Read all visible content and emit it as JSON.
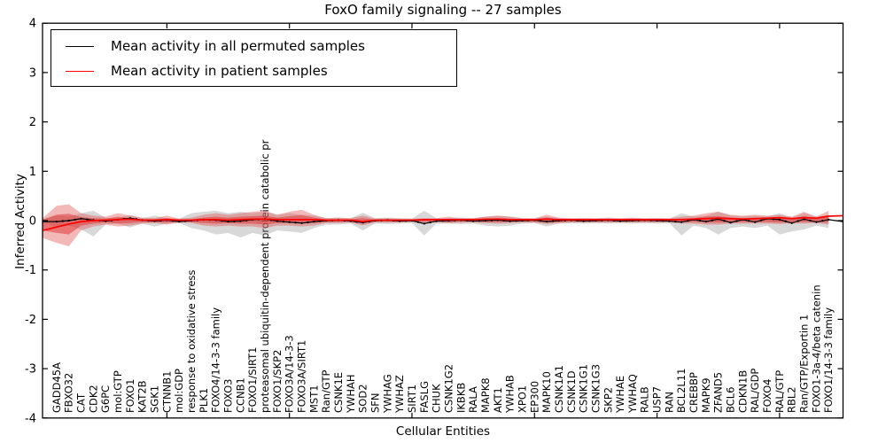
{
  "title": "FoxO family signaling -- 27 samples",
  "axes": {
    "xlabel": "Cellular Entities",
    "ylabel": "Inferred Activity",
    "ylim": [
      -4,
      4
    ],
    "yticks": [
      -4,
      -3,
      -2,
      -1,
      0,
      1,
      2,
      3,
      4
    ],
    "x_major_tick_positions": [
      10,
      20,
      30,
      40,
      50,
      60
    ]
  },
  "legend": {
    "position": "upper left",
    "items": [
      {
        "label": "Mean activity in all permuted samples",
        "color": "#000000"
      },
      {
        "label": "Mean activity in patient samples",
        "color": "#ff0000"
      }
    ]
  },
  "chart_data": {
    "type": "line",
    "title": "FoxO family signaling -- 27 samples",
    "xlabel": "Cellular Entities",
    "ylabel": "Inferred Activity",
    "ylim": [
      -4,
      4
    ],
    "grid": false,
    "categories": [
      "GADD45A",
      "FBXO32",
      "CAT",
      "CDK2",
      "G6PC",
      "mol:GTP",
      "FOXO1",
      "KAT2B",
      "SGK1",
      "CTNNB1",
      "mol:GDP",
      "response to oxidative stress",
      "PLK1",
      "FOXO4/14-3-3 family",
      "FOXO3",
      "CCNB1",
      "FOXO1/SIRT1",
      "proteasomal ubiquitin-dependent protein catabolic pr",
      "FOXO1/SKP2",
      "FOXO3A/14-3-3",
      "FOXO3A/SIRT1",
      "MST1",
      "Ran/GTP",
      "CSNK1E",
      "YWHAH",
      "SOD2",
      "SFN",
      "YWHAG",
      "YWHAZ",
      "SIRT1",
      "FASLG",
      "CHUK",
      "CSNK1G2",
      "IKBKB",
      "RALA",
      "MAPK8",
      "AKT1",
      "YWHAB",
      "XPO1",
      "EP300",
      "MAPK10",
      "CSNK1A1",
      "CSNK1D",
      "CSNK1G1",
      "CSNK1G3",
      "SKP2",
      "YWHAE",
      "YWHAQ",
      "RALB",
      "USP7",
      "RAN",
      "BCL2L11",
      "CREBBP",
      "MAPK9",
      "ZFAND5",
      "BCL6",
      "CDKN1B",
      "RAL/GDP",
      "FOXO4",
      "RAL/GTP",
      "RBL2",
      "Ran/GTP/Exportin 1",
      "FOXO1-3a-4/beta catenin",
      "FOXO1/14-3-3 family"
    ],
    "series": [
      {
        "name": "Mean activity in all permuted samples",
        "color": "#000000",
        "line_width": 1.2,
        "markers": true,
        "edge_left": -0.02,
        "edge_right": -0.02,
        "values": [
          -0.02,
          0,
          0.04,
          0.01,
          -0.01,
          0.02,
          0.05,
          0.01,
          -0.01,
          0.01,
          -0.02,
          0,
          0.02,
          0.01,
          -0.02,
          -0.01,
          0.02,
          0.03,
          -0.01,
          -0.03,
          -0.05,
          -0.02,
          0,
          0.01,
          -0.01,
          -0.04,
          0,
          0.01,
          -0.01,
          0,
          -0.06,
          -0.01,
          0,
          0.01,
          -0.01,
          0,
          0.01,
          -0.01,
          0,
          0.01,
          -0.02,
          0,
          0.01,
          -0.01,
          0,
          0.01,
          -0.01,
          0,
          0.01,
          0,
          -0.01,
          -0.03,
          0.02,
          -0.02,
          0.03,
          -0.04,
          0.02,
          -0.03,
          0.04,
          0.02,
          -0.05,
          0.03,
          -0.03,
          0.02
        ]
      },
      {
        "name": "Mean activity in patient samples",
        "color": "#ff0000",
        "line_width": 1.7,
        "markers": false,
        "edge_left": -0.2,
        "edge_right": 0.1,
        "values": [
          -0.13,
          -0.07,
          -0.02,
          0,
          0.01,
          0.02,
          0.03,
          0.01,
          0.01,
          0.02,
          0.01,
          0.01,
          0.02,
          0.02,
          0.01,
          0.02,
          0.03,
          0.03,
          0.02,
          0.02,
          0.02,
          0.02,
          0.01,
          0.01,
          0.01,
          -0.02,
          0.01,
          0.01,
          0.01,
          0.01,
          0.02,
          0.02,
          0.02,
          0.02,
          0.02,
          0.03,
          0.03,
          0.02,
          0.02,
          0.02,
          0.03,
          0.02,
          0.02,
          0.02,
          0.02,
          0.02,
          0.02,
          0.02,
          0.02,
          0.02,
          0.02,
          0.02,
          0.03,
          0.04,
          0.05,
          0.04,
          0.03,
          0.04,
          0.05,
          0.06,
          0.04,
          0.06,
          0.05,
          0.09
        ]
      }
    ],
    "bands": [
      {
        "name": "permuted-sample-range",
        "color": "#999999",
        "opacity": 0.38,
        "edge_left": {
          "upper": 0.03,
          "lower": -0.05
        },
        "upper": [
          0.1,
          0.08,
          0.15,
          0.2,
          0.06,
          0.05,
          0.12,
          0.05,
          0.1,
          0.05,
          0.04,
          0.15,
          0.18,
          0.2,
          0.15,
          0.18,
          0.15,
          0.18,
          0.12,
          0.15,
          0.12,
          0.1,
          0.05,
          0.06,
          0.05,
          0.16,
          0.05,
          0.06,
          0.05,
          0.04,
          0.2,
          0.05,
          0.05,
          0.06,
          0.05,
          0.08,
          0.1,
          0.08,
          0.05,
          0.04,
          0.08,
          0.05,
          0.04,
          0.05,
          0.04,
          0.05,
          0.04,
          0.05,
          0.04,
          0.05,
          0.04,
          0.15,
          0.08,
          0.1,
          0.18,
          0.1,
          0.08,
          0.1,
          0.08,
          0.15,
          0.06,
          0.15,
          0.08,
          0.12
        ],
        "lower": [
          -0.12,
          -0.1,
          -0.18,
          -0.32,
          -0.08,
          -0.06,
          -0.14,
          -0.06,
          -0.12,
          -0.06,
          -0.05,
          -0.15,
          -0.2,
          -0.28,
          -0.25,
          -0.34,
          -0.25,
          -0.3,
          -0.2,
          -0.22,
          -0.25,
          -0.15,
          -0.08,
          -0.08,
          -0.06,
          -0.2,
          -0.06,
          -0.07,
          -0.06,
          -0.05,
          -0.3,
          -0.06,
          -0.06,
          -0.07,
          -0.06,
          -0.1,
          -0.12,
          -0.1,
          -0.06,
          -0.05,
          -0.12,
          -0.06,
          -0.05,
          -0.06,
          -0.05,
          -0.06,
          -0.05,
          -0.06,
          -0.05,
          -0.06,
          -0.05,
          -0.3,
          -0.1,
          -0.15,
          -0.28,
          -0.15,
          -0.12,
          -0.15,
          -0.1,
          -0.28,
          -0.22,
          -0.18,
          -0.1,
          -0.15
        ]
      },
      {
        "name": "patient-sample-range-outer",
        "color": "#e05050",
        "opacity": 0.4,
        "edge_left": {
          "upper": 0.05,
          "lower": -0.35
        },
        "upper": [
          0.3,
          0.33,
          0.15,
          0.1,
          0.08,
          0.15,
          0.1,
          0.06,
          0.05,
          0.1,
          0.04,
          0.06,
          0.12,
          0.15,
          0.12,
          0.15,
          0.18,
          0.2,
          0.12,
          0.18,
          0.22,
          0.12,
          0.05,
          0.06,
          0.05,
          0.1,
          0.04,
          0.05,
          0.04,
          0.04,
          0.05,
          0.05,
          0.08,
          0.05,
          0.05,
          0.08,
          0.1,
          0.08,
          0.05,
          0.05,
          0.12,
          0.06,
          0.05,
          0.05,
          0.05,
          0.06,
          0.05,
          0.06,
          0.05,
          0.05,
          0.05,
          0.08,
          0.1,
          0.15,
          0.18,
          0.12,
          0.1,
          0.12,
          0.1,
          0.12,
          0.08,
          0.18,
          0.08,
          0.2
        ],
        "lower": [
          -0.45,
          -0.52,
          -0.2,
          -0.12,
          -0.08,
          -0.12,
          -0.1,
          -0.06,
          -0.05,
          -0.08,
          -0.04,
          -0.05,
          -0.1,
          -0.12,
          -0.1,
          -0.12,
          -0.12,
          -0.15,
          -0.1,
          -0.1,
          -0.12,
          -0.1,
          -0.05,
          -0.05,
          -0.04,
          -0.1,
          -0.04,
          -0.04,
          -0.04,
          -0.03,
          -0.04,
          -0.04,
          -0.05,
          -0.04,
          -0.04,
          -0.05,
          -0.06,
          -0.05,
          -0.04,
          -0.04,
          -0.07,
          -0.05,
          -0.04,
          -0.04,
          -0.04,
          -0.04,
          -0.04,
          -0.04,
          -0.04,
          -0.04,
          -0.04,
          -0.06,
          -0.06,
          -0.08,
          -0.08,
          -0.06,
          -0.06,
          -0.06,
          -0.06,
          -0.07,
          -0.06,
          -0.06,
          -0.05,
          -0.08
        ]
      },
      {
        "name": "patient-sample-range-inner",
        "color": "#dd3030",
        "opacity": 0.5,
        "edge_left": {
          "upper": 0.02,
          "lower": -0.2
        },
        "upper": [
          0.12,
          0.14,
          0.07,
          0.05,
          0.04,
          0.08,
          0.05,
          0.03,
          0.03,
          0.05,
          0.02,
          0.03,
          0.06,
          0.08,
          0.06,
          0.08,
          0.09,
          0.1,
          0.06,
          0.09,
          0.11,
          0.06,
          0.03,
          0.03,
          0.03,
          0.05,
          0.02,
          0.03,
          0.02,
          0.02,
          0.03,
          0.03,
          0.04,
          0.03,
          0.03,
          0.04,
          0.05,
          0.04,
          0.03,
          0.03,
          0.06,
          0.03,
          0.03,
          0.03,
          0.03,
          0.03,
          0.03,
          0.03,
          0.03,
          0.03,
          0.03,
          0.04,
          0.05,
          0.08,
          0.09,
          0.06,
          0.05,
          0.06,
          0.05,
          0.06,
          0.04,
          0.09,
          0.04,
          0.1
        ],
        "lower": [
          -0.25,
          -0.28,
          -0.1,
          -0.06,
          -0.04,
          -0.06,
          -0.05,
          -0.03,
          -0.03,
          -0.04,
          -0.02,
          -0.03,
          -0.05,
          -0.06,
          -0.05,
          -0.06,
          -0.06,
          -0.08,
          -0.05,
          -0.05,
          -0.06,
          -0.05,
          -0.03,
          -0.03,
          -0.02,
          -0.05,
          -0.02,
          -0.02,
          -0.02,
          -0.02,
          -0.02,
          -0.02,
          -0.03,
          -0.02,
          -0.02,
          -0.03,
          -0.03,
          -0.03,
          -0.02,
          -0.02,
          -0.04,
          -0.03,
          -0.02,
          -0.02,
          -0.02,
          -0.02,
          -0.02,
          -0.02,
          -0.02,
          -0.02,
          -0.02,
          -0.03,
          -0.03,
          -0.04,
          -0.04,
          -0.03,
          -0.03,
          -0.03,
          -0.03,
          -0.04,
          -0.03,
          -0.03,
          -0.03,
          -0.04
        ]
      }
    ]
  }
}
